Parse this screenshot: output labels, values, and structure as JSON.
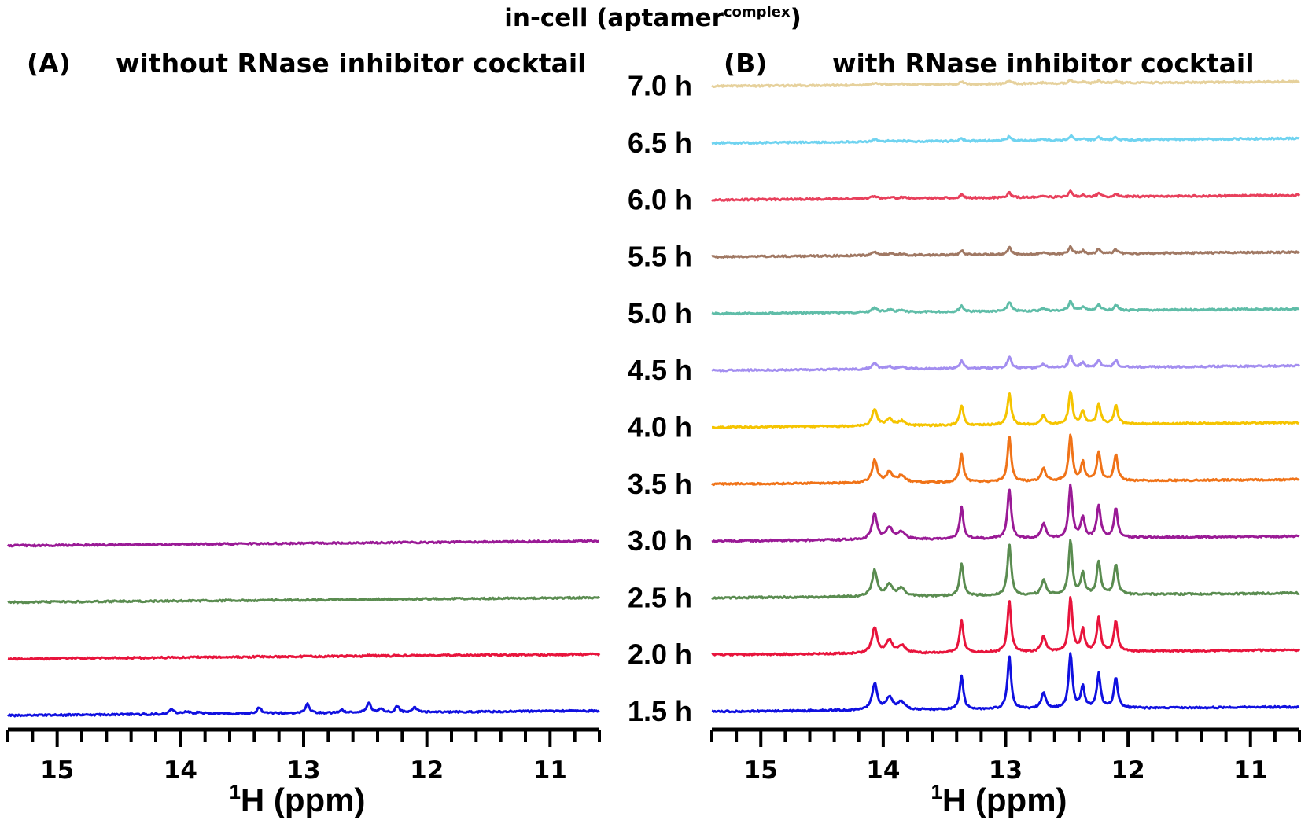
{
  "figure_title": "in-cell (aptamer",
  "figure_title_sup": "complex",
  "figure_title_close": ")",
  "chart_data": [
    {
      "type": "line",
      "panel_label": "(A)",
      "title": "without RNase inhibitor cocktail",
      "xlabel_sup": "1",
      "xlabel": "H (ppm)",
      "xlim": [
        15.4,
        10.6
      ],
      "x_ticks": [
        "15",
        "14",
        "13",
        "12",
        "11"
      ],
      "peaks_ppm": [
        14.07,
        13.95,
        13.85,
        13.36,
        12.97,
        12.69,
        12.47,
        12.37,
        12.24,
        12.1
      ],
      "series": [
        {
          "name": "1.5 h",
          "color": "#1010e0",
          "intensity": 0.22
        },
        {
          "name": "2.0 h",
          "color": "#e8143c",
          "intensity": 0.02
        },
        {
          "name": "2.5 h",
          "color": "#5a8c50",
          "intensity": 0.0
        },
        {
          "name": "3.0 h",
          "color": "#9a1a96",
          "intensity": 0.0
        }
      ]
    },
    {
      "type": "line",
      "panel_label": "(B)",
      "title": "with RNase inhibitor cocktail",
      "xlabel_sup": "1",
      "xlabel": "H (ppm)",
      "xlim": [
        15.4,
        10.6
      ],
      "x_ticks": [
        "15",
        "14",
        "13",
        "12",
        "11"
      ],
      "peaks_ppm": [
        14.07,
        13.95,
        13.85,
        13.36,
        12.97,
        12.69,
        12.47,
        12.37,
        12.24,
        12.1
      ],
      "series": [
        {
          "name": "1.5 h",
          "color": "#1010e0",
          "intensity": 1.0
        },
        {
          "name": "2.0 h",
          "color": "#e8143c",
          "intensity": 0.98
        },
        {
          "name": "2.5 h",
          "color": "#5a8c50",
          "intensity": 0.98
        },
        {
          "name": "3.0 h",
          "color": "#9a1a96",
          "intensity": 0.95
        },
        {
          "name": "3.5 h",
          "color": "#f07318",
          "intensity": 0.85
        },
        {
          "name": "4.0 h",
          "color": "#f5c400",
          "intensity": 0.6
        },
        {
          "name": "4.5 h",
          "color": "#a38ef0",
          "intensity": 0.22
        },
        {
          "name": "5.0 h",
          "color": "#5fbda8",
          "intensity": 0.18
        },
        {
          "name": "5.5 h",
          "color": "#a07863",
          "intensity": 0.13
        },
        {
          "name": "6.0 h",
          "color": "#e8405c",
          "intensity": 0.1
        },
        {
          "name": "6.5 h",
          "color": "#6fd3f0",
          "intensity": 0.08
        },
        {
          "name": "7.0 h",
          "color": "#e6d19c",
          "intensity": 0.07
        }
      ]
    }
  ]
}
